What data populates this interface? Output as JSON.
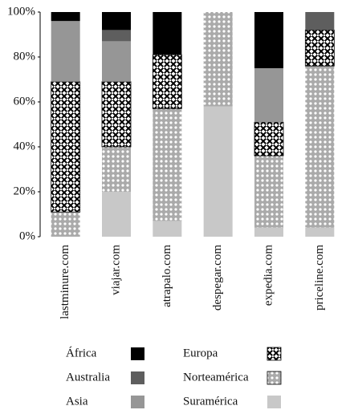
{
  "chart_data": {
    "type": "stacked_bar",
    "categories": [
      "lastminure.com",
      "viajar.com",
      "atrapalo.com",
      "despegar.com",
      "expedia.com",
      "priceline.com"
    ],
    "series": [
      {
        "name": "África",
        "color": "#000000",
        "values": [
          4,
          8,
          19,
          0,
          25,
          0
        ]
      },
      {
        "name": "Australia",
        "color": "#5e5e5e",
        "values": [
          0,
          5,
          0,
          0,
          0,
          8
        ]
      },
      {
        "name": "Asia",
        "color": "#969696",
        "values": [
          27,
          18,
          0,
          0,
          24,
          0
        ]
      },
      {
        "name": "Europa",
        "color": "#000000",
        "pattern": "crosshatch",
        "values": [
          58,
          29,
          24,
          0,
          15,
          16
        ]
      },
      {
        "name": "Norteamérica",
        "color": "#b0b0b0",
        "pattern": "dots",
        "values": [
          11,
          20,
          50,
          42,
          32,
          72
        ]
      },
      {
        "name": "Suramérica",
        "color": "#c8c8c8",
        "values": [
          0,
          20,
          7,
          58,
          4,
          4
        ]
      }
    ],
    "ylim": [
      0,
      100
    ],
    "yticks": [
      {
        "value": 0,
        "label": "0%"
      },
      {
        "value": 20,
        "label": "20%"
      },
      {
        "value": 40,
        "label": "40%"
      },
      {
        "value": 60,
        "label": "60%"
      },
      {
        "value": 80,
        "label": "80%"
      },
      {
        "value": 100,
        "label": "100%"
      }
    ]
  }
}
